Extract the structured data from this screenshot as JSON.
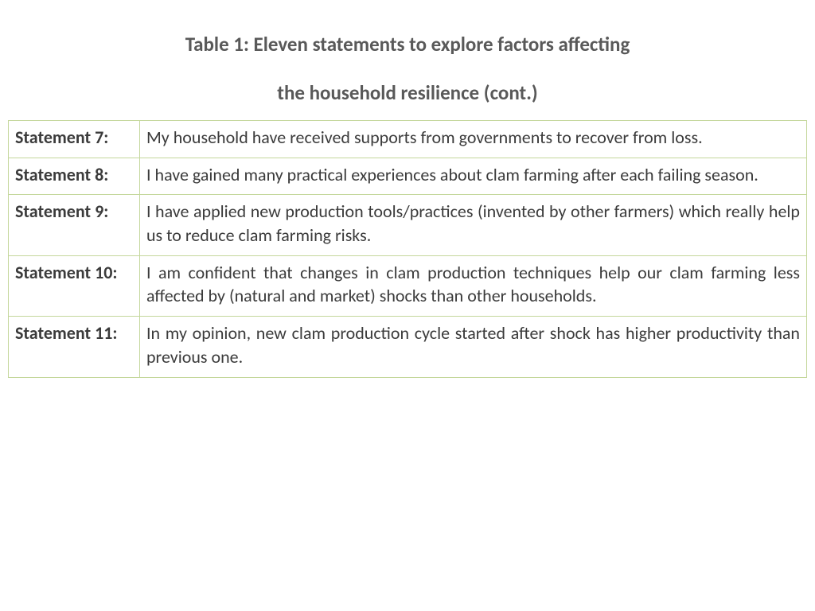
{
  "title": {
    "line1": "Table 1: Eleven statements to explore factors affecting",
    "line2": "the household resilience (cont.)"
  },
  "table": {
    "border_color": "#c4d79b",
    "label_color": "#3b3b3b",
    "text_color": "#3b3b3b",
    "font_size_pt": 17,
    "rows": [
      {
        "label": "Statement 7:",
        "text": "My household have received supports from governments to recover from loss."
      },
      {
        "label": "Statement 8:",
        "text": "I have gained many practical experiences about clam farming after each failing season."
      },
      {
        "label": "Statement 9:",
        "text": "I have applied new production tools/practices (invented by other farmers) which really help us to reduce clam farming risks."
      },
      {
        "label": "Statement 10:",
        "text": "I am confident that changes in clam production techniques help our clam farming less affected by (natural and market) shocks than other households."
      },
      {
        "label": "Statement 11:",
        "text": "In my opinion, new clam production cycle started after shock has higher productivity than previous one."
      }
    ]
  },
  "colors": {
    "title_color": "#595959",
    "background": "#ffffff"
  }
}
